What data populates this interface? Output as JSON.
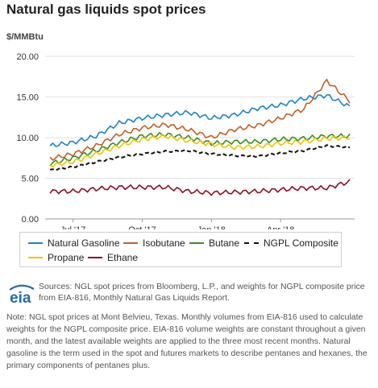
{
  "title": "Natural gas liquids spot prices",
  "unit": "$/MMBtu",
  "sources": "Sources: NGL spot prices from Bloomberg, L.P., and weights for NGPL composite price from EIA-816, Monthly Natural Gas Liquids Report.",
  "note": "Note: NGL spot prices at Mont Belvieu, Texas. Monthly volumes from EIA-816 used to calculate weights for the NGPL composite price. EIA-816 volume weights are constant throughout a given month, and the latest available weights are applied to the three most recent months. Natural gasoline is the term used in the spot and futures markets to describe pentanes and hexanes, the primary components of pentanes plus.",
  "logo_text": "eia",
  "chart_data": {
    "type": "line",
    "title": "Natural gas liquids spot prices",
    "ylabel": "$/MMBtu",
    "ylim": [
      0,
      20
    ],
    "yticks": [
      "0.00",
      "5.00",
      "10.00",
      "15.00",
      "20.00"
    ],
    "xticks": [
      "Jul '17",
      "Oct '17",
      "Jan '18",
      "Apr '18"
    ],
    "x": [
      "2017-06",
      "2017-07",
      "2017-08",
      "2017-09",
      "2017-10",
      "2017-11",
      "2017-12",
      "2018-01",
      "2018-02",
      "2018-03",
      "2018-04",
      "2018-05",
      "2018-06",
      "2018-07"
    ],
    "grid": true,
    "legend_position": "bottom",
    "series": [
      {
        "name": "Natural Gasoline",
        "color": "#1f82c8",
        "dashed": false,
        "values": [
          9.0,
          9.4,
          10.2,
          11.8,
          12.4,
          12.8,
          13.1,
          12.4,
          12.8,
          13.6,
          14.0,
          14.8,
          15.2,
          13.8
        ]
      },
      {
        "name": "Isobutane",
        "color": "#c0602a",
        "dashed": false,
        "values": [
          7.4,
          8.0,
          9.0,
          10.4,
          11.2,
          11.6,
          11.0,
          10.0,
          11.0,
          11.5,
          12.4,
          13.5,
          17.0,
          14.5
        ]
      },
      {
        "name": "Butane",
        "color": "#3a8a2a",
        "dashed": false,
        "values": [
          6.8,
          7.5,
          8.4,
          9.4,
          10.2,
          10.4,
          10.0,
          9.3,
          9.5,
          9.5,
          9.8,
          9.9,
          10.2,
          10.2
        ]
      },
      {
        "name": "NGPL Composite",
        "color": "#111111",
        "dashed": true,
        "values": [
          6.0,
          6.4,
          7.0,
          7.6,
          8.0,
          8.3,
          8.4,
          8.0,
          7.8,
          7.7,
          8.1,
          8.4,
          9.0,
          8.8
        ]
      },
      {
        "name": "Propane",
        "color": "#f2c200",
        "dashed": false,
        "values": [
          6.6,
          7.0,
          8.0,
          9.0,
          9.8,
          10.2,
          9.6,
          9.2,
          8.8,
          8.9,
          9.3,
          9.5,
          9.9,
          10.0
        ]
      },
      {
        "name": "Ethane",
        "color": "#8b1020",
        "dashed": false,
        "values": [
          3.4,
          3.4,
          3.7,
          3.9,
          3.9,
          3.9,
          3.4,
          3.2,
          3.3,
          3.4,
          3.6,
          3.8,
          3.8,
          4.6
        ]
      }
    ]
  }
}
